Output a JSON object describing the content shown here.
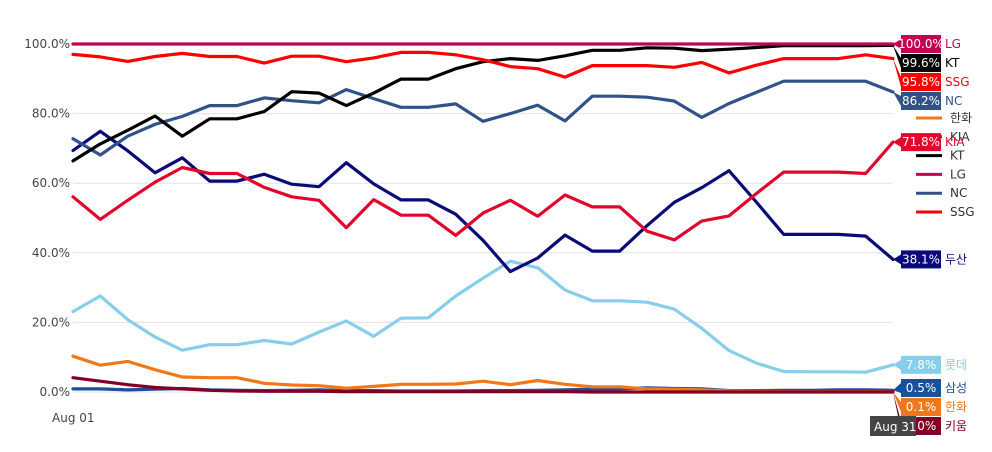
{
  "chart_data": {
    "type": "line",
    "x_start_label": "Aug 01",
    "hover_x_label": "Aug 31",
    "ylim": [
      0,
      100
    ],
    "y_ticks": [
      {
        "value": 0,
        "label": "0.0%"
      },
      {
        "value": 20,
        "label": "20.0%"
      },
      {
        "value": 40,
        "label": "40.0%"
      },
      {
        "value": 60,
        "label": "60.0%"
      },
      {
        "value": 80,
        "label": "80.0%"
      },
      {
        "value": 100,
        "label": "100.0%"
      }
    ],
    "series": [
      {
        "name": "롯데",
        "color": "#87ceeb",
        "end_label": "7.8%",
        "values": [
          23.1,
          27.6,
          20.8,
          15.8,
          12.0,
          13.6,
          13.6,
          14.8,
          13.8,
          17.2,
          20.4,
          16.0,
          21.2,
          21.3,
          27.6,
          32.7,
          37.6,
          35.7,
          29.3,
          26.2,
          26.2,
          25.8,
          23.8,
          18.3,
          11.9,
          8.3,
          5.9,
          5.8,
          5.8,
          5.7,
          7.8
        ]
      },
      {
        "name": "삼성",
        "color": "#1a4f9e",
        "end_label": "0.5%",
        "values": [
          0.9,
          0.9,
          0.6,
          0.8,
          1.0,
          0.6,
          0.5,
          0.4,
          0.5,
          0.6,
          0.4,
          0.4,
          0.3,
          0.3,
          0.3,
          0.4,
          0.4,
          0.5,
          0.6,
          0.8,
          0.9,
          1.2,
          1.0,
          0.9,
          0.4,
          0.4,
          0.5,
          0.5,
          0.6,
          0.6,
          0.5
        ]
      },
      {
        "name": "한화",
        "color": "#f07818",
        "end_label": "0.1%",
        "values": [
          10.3,
          7.7,
          8.8,
          6.4,
          4.3,
          4.1,
          4.1,
          2.5,
          2.0,
          1.8,
          1.1,
          1.6,
          2.2,
          2.2,
          2.3,
          3.1,
          2.1,
          3.3,
          2.2,
          1.5,
          1.5,
          0.9,
          0.8,
          0.6,
          0.3,
          0.2,
          0.1,
          0.1,
          0.1,
          0.1,
          0.1
        ]
      },
      {
        "name": "키움",
        "color": "#820024",
        "end_label": "0.0%",
        "values": [
          4.1,
          3.1,
          2.1,
          1.3,
          0.9,
          0.5,
          0.3,
          0.2,
          0.2,
          0.2,
          0.1,
          0.1,
          0.1,
          0.1,
          0.1,
          0.1,
          0.1,
          0.1,
          0.1,
          0.0,
          0.0,
          0.0,
          0.0,
          0.0,
          0.0,
          0.0,
          0.0,
          0.0,
          0.0,
          0.0,
          0.0
        ]
      },
      {
        "name": "두산",
        "color": "#0a0a78",
        "end_label": "38.1%",
        "values": [
          69.4,
          74.9,
          69.3,
          63.0,
          67.3,
          60.6,
          60.6,
          62.6,
          59.7,
          59.0,
          65.9,
          59.8,
          55.2,
          55.2,
          51.1,
          43.6,
          34.6,
          38.5,
          45.1,
          40.5,
          40.5,
          47.8,
          54.5,
          58.7,
          63.6,
          54.6,
          45.3,
          45.3,
          45.3,
          44.8,
          38.1
        ]
      },
      {
        "name": "KIA",
        "color": "#e2062c",
        "end_label": "71.8%",
        "values": [
          56.1,
          49.6,
          55.1,
          60.3,
          64.5,
          62.8,
          62.8,
          58.8,
          56.1,
          55.1,
          47.2,
          55.3,
          50.8,
          50.8,
          45.0,
          51.4,
          55.1,
          50.5,
          56.6,
          53.2,
          53.2,
          46.2,
          43.7,
          49.1,
          50.6,
          57.0,
          63.2,
          63.2,
          63.2,
          62.8,
          71.8
        ]
      },
      {
        "name": "NC",
        "color": "#315288",
        "end_label": "86.2%",
        "values": [
          72.8,
          68.1,
          73.5,
          76.9,
          79.2,
          82.3,
          82.3,
          84.5,
          83.7,
          83.1,
          86.9,
          84.3,
          81.8,
          81.8,
          82.8,
          77.8,
          80.0,
          82.4,
          77.9,
          85.0,
          85.0,
          84.7,
          83.6,
          78.9,
          82.9,
          86.1,
          89.3,
          89.3,
          89.3,
          89.3,
          86.2
        ]
      },
      {
        "name": "KT",
        "color": "#000000",
        "end_label": "99.6%",
        "values": [
          66.4,
          71.3,
          75.2,
          79.3,
          73.5,
          78.5,
          78.5,
          80.6,
          86.3,
          85.9,
          82.3,
          85.9,
          89.9,
          89.9,
          92.9,
          94.9,
          95.8,
          95.3,
          96.6,
          98.2,
          98.2,
          98.9,
          98.8,
          98.1,
          98.5,
          99.0,
          99.5,
          99.5,
          99.5,
          99.5,
          99.6
        ]
      },
      {
        "name": "SSG",
        "color": "#ff0000",
        "end_label": "95.8%",
        "values": [
          97.0,
          96.3,
          95.0,
          96.4,
          97.3,
          96.4,
          96.4,
          94.5,
          96.5,
          96.5,
          94.9,
          96.0,
          97.6,
          97.6,
          96.9,
          95.5,
          93.5,
          92.9,
          90.5,
          93.8,
          93.8,
          93.8,
          93.3,
          94.7,
          91.7,
          93.9,
          95.8,
          95.8,
          95.8,
          96.9,
          95.8
        ]
      },
      {
        "name": "LG",
        "color": "#c30452",
        "end_label": "100.0%",
        "values": [
          100,
          100,
          100,
          100,
          100,
          100,
          100,
          100,
          100,
          100,
          100,
          100,
          100,
          100,
          100,
          100,
          100,
          100,
          100,
          100,
          100,
          100,
          100,
          100,
          100,
          100,
          100,
          100,
          100,
          100,
          100
        ]
      }
    ],
    "legend": {
      "placement": "right",
      "entries": [
        {
          "name": "한화",
          "color": "#f07818"
        },
        {
          "name": "KIA",
          "color": "#e2062c"
        },
        {
          "name": "KT",
          "color": "#000000"
        },
        {
          "name": "LG",
          "color": "#c30452"
        },
        {
          "name": "NC",
          "color": "#315288"
        },
        {
          "name": "SSG",
          "color": "#ff0000"
        }
      ]
    },
    "grid": true
  }
}
